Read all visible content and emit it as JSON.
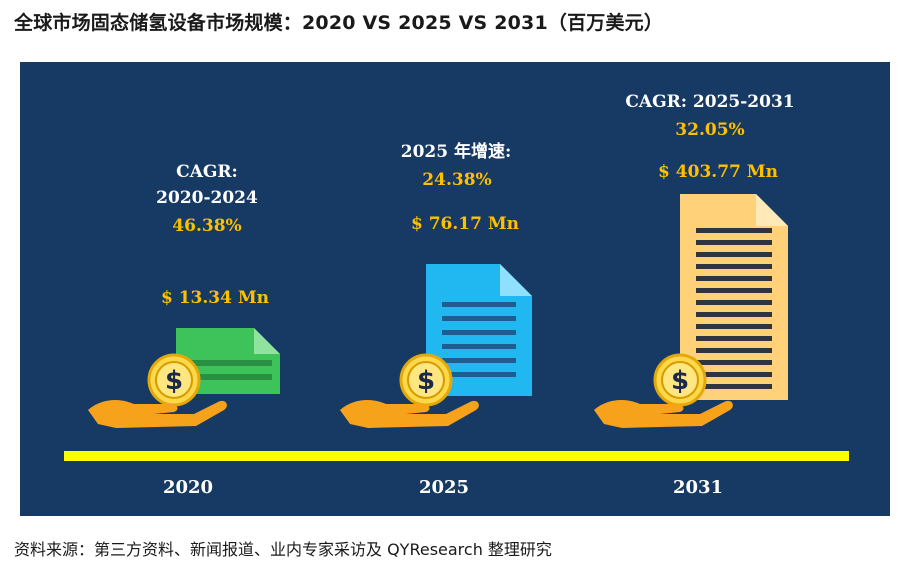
{
  "title": "全球市场固态储氢设备市场规模：2020 VS 2025 VS 2031（百万美元）",
  "source": "资料来源：第三方资料、新闻报道、业内专家采访及 QYResearch 整理研究",
  "chart_data": {
    "type": "infographic",
    "categories": [
      "2020",
      "2025",
      "2031"
    ],
    "values": [
      13.34,
      76.17,
      403.77
    ],
    "value_labels": [
      "$ 13.34 Mn",
      "$ 76.17 Mn",
      "$ 403.77 Mn"
    ],
    "growth_titles": [
      "CAGR:",
      "2025 年增速:",
      "CAGR: 2025-2031"
    ],
    "growth_subtitles": [
      "2020-2024",
      "",
      ""
    ],
    "growth_rates": [
      "46.38%",
      "24.38%",
      "32.05%"
    ],
    "colors": {
      "panel": "#173a64",
      "baseline": "#ffff00",
      "label": "#ffc000",
      "doc_2020": "#3ec25a",
      "doc_2025": "#21b8f2",
      "doc_2031": "#ffd27a",
      "hand": "#f7a21b",
      "coin": "#ffd84a"
    }
  }
}
